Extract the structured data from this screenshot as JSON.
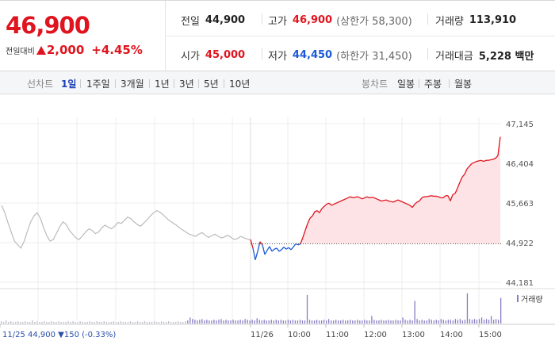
{
  "quote": {
    "price": "46,900",
    "change_label": "전일대비",
    "change_value": "2,000",
    "change_pct": "+4.45%",
    "prev_close_label": "전일",
    "prev_close": "44,900",
    "high_label": "고가",
    "high": "46,900",
    "upper_limit": "(상한가 58,300)",
    "volume_label": "거래량",
    "volume": "113,910",
    "open_label": "시가",
    "open": "45,000",
    "low_label": "저가",
    "low": "44,450",
    "lower_limit": "(하한가 31,450)",
    "amount_label": "거래대금",
    "amount": "5,228 백만"
  },
  "tabs": {
    "line_label": "선차트",
    "line_items": [
      "1일",
      "1주일",
      "3개월",
      "1년",
      "3년",
      "5년",
      "10년"
    ],
    "candle_label": "봉차트",
    "candle_items": [
      "일봉",
      "주봉",
      "월봉"
    ]
  },
  "colors": {
    "up": "#e0141e",
    "down": "#1a5ad8",
    "prev": "#bbbbbb",
    "volume": "#8a7cc4"
  },
  "chart_data": {
    "type": "line",
    "title": "",
    "y_ticks": [
      "47,145",
      "46,404",
      "45,663",
      "44,922",
      "44,181"
    ],
    "ylim": [
      44181,
      47145
    ],
    "baseline": 44900,
    "x_ticks": [
      "11/25",
      "11/26",
      "10:00",
      "11:00",
      "12:00",
      "13:00",
      "14:00",
      "15:00"
    ],
    "prev_day_footer": "11/25  44,900 ▼150 (-0.33%)",
    "volume_legend": "거래량",
    "series": [
      {
        "values": [
          45620,
          45480,
          45290,
          45120,
          44950,
          44880,
          44820,
          44950,
          45140,
          45310,
          45420,
          45480,
          45380,
          45200,
          45050,
          44950,
          44980,
          45100,
          45220,
          45310,
          45260,
          45150,
          45080,
          45010,
          44980,
          45050,
          45120,
          45180,
          45150,
          45090,
          45120,
          45200,
          45250,
          45210,
          45180,
          45230,
          45300,
          45280,
          45340,
          45400,
          45370,
          45310,
          45260,
          45230,
          45290,
          45350,
          45420,
          45480,
          45520,
          45490,
          45440,
          45380,
          45330,
          45290,
          45250,
          45200,
          45160,
          45120,
          45080,
          45060,
          45040,
          45080,
          45110,
          45060,
          45020,
          45050,
          45080,
          45040,
          45010,
          45030,
          45060,
          45020,
          44980,
          45000,
          45040,
          45010,
          44990,
          44970
        ]
      },
      {
        "values": [
          44980,
          44820,
          44600,
          44760,
          44940,
          44880,
          44700,
          44780,
          44850,
          44760,
          44800,
          44820,
          44760,
          44790,
          44840,
          44800,
          44830,
          44790,
          44840,
          44900,
          44880,
          44900,
          45020,
          45150,
          45280,
          45380,
          45420,
          45500,
          45520,
          45480,
          45560,
          45600,
          45640,
          45660,
          45620,
          45640,
          45660,
          45680,
          45700,
          45720,
          45740,
          45760,
          45780,
          45760,
          45770,
          45780,
          45760,
          45740,
          45760,
          45780,
          45760,
          45770,
          45760,
          45740,
          45720,
          45700,
          45710,
          45720,
          45700,
          45690,
          45680,
          45700,
          45720,
          45700,
          45680,
          45660,
          45640,
          45620,
          45580,
          45640,
          45680,
          45700,
          45760,
          45780,
          45780,
          45790,
          45800,
          45790,
          45790,
          45780,
          45760,
          45760,
          45800,
          45800,
          45700,
          45820,
          45840,
          45940,
          46050,
          46150,
          46200,
          46300,
          46350,
          46400,
          46420,
          46440,
          46450,
          46460,
          46440,
          46460,
          46460,
          46470,
          46480,
          46500,
          46550,
          46900
        ]
      }
    ],
    "volume": [
      3,
      2,
      4,
      2,
      3,
      2,
      2,
      3,
      2,
      2,
      3,
      2,
      2,
      4,
      2,
      3,
      2,
      2,
      3,
      2,
      2,
      3,
      2,
      2,
      3,
      2,
      2,
      2,
      3,
      2,
      3,
      2,
      2,
      3,
      2,
      2,
      2,
      3,
      2,
      2,
      3,
      2,
      2,
      3,
      2,
      2,
      2,
      3,
      2,
      2,
      3,
      2,
      2,
      2,
      3,
      2,
      2,
      3,
      2,
      2,
      3,
      2,
      2,
      2,
      3,
      2,
      2,
      3,
      2,
      2,
      3,
      2,
      2,
      2,
      3,
      2,
      2,
      3,
      4,
      8,
      6,
      5,
      4,
      5,
      6,
      4,
      5,
      4,
      4,
      5,
      4,
      5,
      6,
      4,
      5,
      4,
      4,
      5,
      4,
      4,
      5,
      4,
      6,
      5,
      4,
      5,
      4,
      7,
      5,
      4,
      5,
      4,
      4,
      5,
      4,
      5,
      4,
      5,
      4,
      4,
      5,
      4,
      5,
      4,
      4,
      5,
      4,
      4,
      38,
      5,
      4,
      4,
      5,
      4,
      4,
      5,
      4,
      6,
      4,
      4,
      5,
      4,
      4,
      5,
      4,
      4,
      5,
      4,
      4,
      5,
      4,
      4,
      5,
      4,
      4,
      10,
      5,
      4,
      4,
      5,
      4,
      4,
      5,
      4,
      4,
      5,
      4,
      4,
      8,
      5,
      4,
      5,
      4,
      30,
      6,
      4,
      5,
      4,
      4,
      6,
      5,
      4,
      5,
      4,
      6,
      5,
      4,
      5,
      5,
      4,
      6,
      5,
      6,
      4,
      5,
      40,
      6,
      5,
      6,
      5,
      6,
      8,
      5,
      6,
      5,
      10,
      5,
      6,
      5,
      34
    ]
  }
}
